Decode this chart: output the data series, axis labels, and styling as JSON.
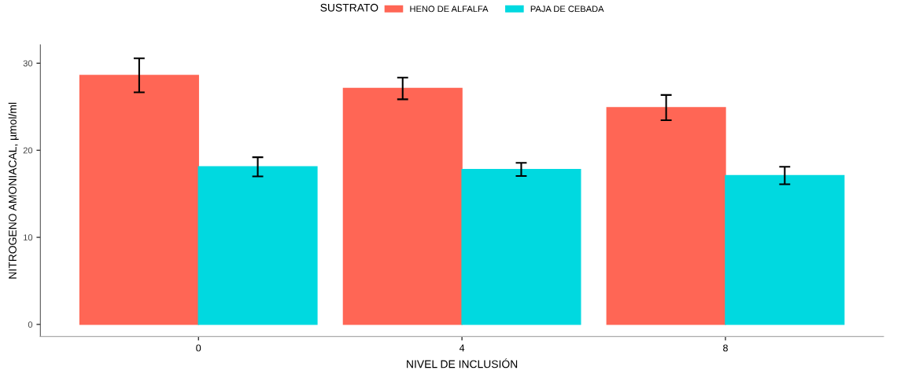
{
  "chart_data": {
    "type": "bar",
    "xlabel": "NIVEL DE INCLUSIÓN",
    "ylabel": "NITROGENO AMONIACAL, µmol/ml",
    "legend_title": "SUSTRATO",
    "categories": [
      "0",
      "4",
      "8"
    ],
    "series": [
      {
        "name": "HENO DE ALFALFA",
        "color": "#ff6655",
        "values": [
          28.6,
          27.1,
          24.9
        ],
        "errors": [
          1.95,
          1.25,
          1.45
        ]
      },
      {
        "name": "PAJA DE CEBADA",
        "color": "#00d9e0",
        "values": [
          18.1,
          17.8,
          17.1
        ],
        "errors": [
          1.1,
          0.75,
          1.0
        ]
      }
    ],
    "ylim": [
      -1.4,
      32.1
    ],
    "yticks": [
      0,
      10,
      20,
      30
    ],
    "grid": false,
    "legend": "top"
  }
}
